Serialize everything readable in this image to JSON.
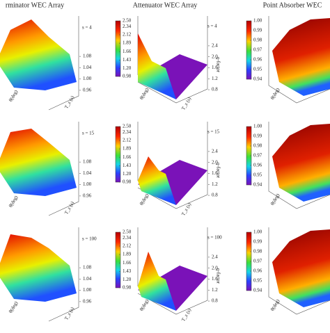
{
  "columns": [
    "rminator WEC Array",
    "Attenuator WEC Array",
    "Point Absorber WEC"
  ],
  "s_labels": [
    "s = 4",
    "s = 15",
    "s = 100"
  ],
  "axis_labels": {
    "x": "T_z (s)",
    "y": "θ(deg)",
    "z": "q-factor"
  },
  "terminator_axis": {
    "lim": [
      0.94,
      1.1
    ],
    "ticks": [
      {
        "value": 0.96,
        "label": "0.96"
      },
      {
        "value": 1,
        "label": "1.00"
      },
      {
        "value": 1.04,
        "label": "1.04"
      },
      {
        "value": 1.08,
        "label": "1.08"
      }
    ]
  },
  "attenuator_axis": {
    "lim": [
      0.7,
      2.6
    ],
    "ticks": [
      0.8,
      1.2,
      1.6,
      {
        "value": 2,
        "label": "2.0"
      },
      2.4
    ]
  },
  "attenuator_colorbar": {
    "lim": [
      0.98,
      2.5
    ],
    "ticks": [
      {
        "value": 0.98,
        "label": "0.98"
      },
      {
        "value": 1.2,
        "label": "1.20"
      },
      {
        "value": 1.43,
        "label": "1.43"
      },
      {
        "value": 1.66,
        "label": "1.66"
      },
      {
        "value": 1.89,
        "label": "1.89"
      },
      {
        "value": 2.12,
        "label": "2.12"
      },
      {
        "value": 2.34,
        "label": "2.34"
      },
      {
        "value": 2.5,
        "label": "2.50"
      }
    ]
  },
  "point_absorber_colorbar": {
    "lim": [
      0.94,
      1.0
    ],
    "ticks": [
      {
        "value": 0.94,
        "label": "0.94"
      },
      {
        "value": 0.95,
        "label": "0.95"
      },
      {
        "value": 0.96,
        "label": "0.96"
      },
      {
        "value": 0.97,
        "label": "0.97"
      },
      {
        "value": 0.98,
        "label": "0.98"
      },
      {
        "value": 0.99,
        "label": "0.99"
      },
      {
        "value": 1,
        "label": "1.00"
      }
    ]
  }
}
